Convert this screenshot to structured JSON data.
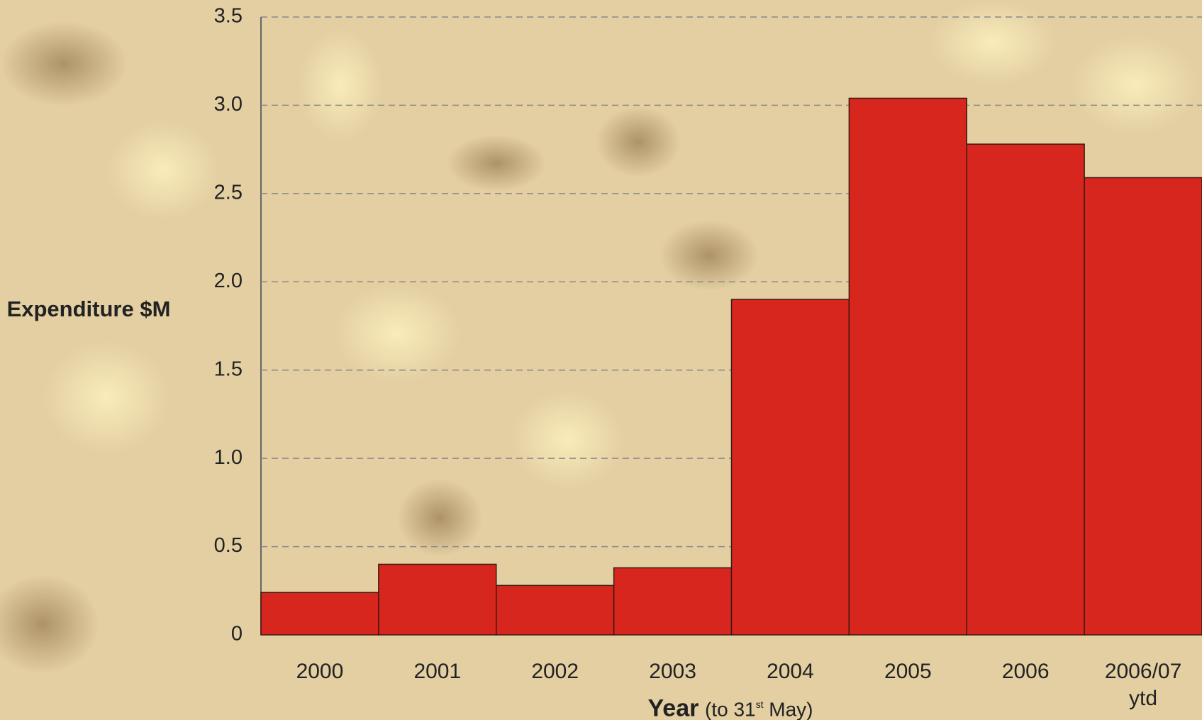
{
  "chart_data": {
    "type": "bar",
    "y_label": "Expenditure $M",
    "x_label": "Year",
    "x_label_note": [
      "(to 31",
      "st",
      " May)"
    ],
    "categories": [
      "2000",
      "2001",
      "2002",
      "2003",
      "2004",
      "2005",
      "2006",
      "2006/07 ytd"
    ],
    "values": [
      0.24,
      0.4,
      0.28,
      0.38,
      1.9,
      3.04,
      2.78,
      2.59
    ],
    "color": "#d7261e",
    "ylim": [
      0,
      3.5
    ],
    "yticks": [
      0,
      0.5,
      {
        "value": 1,
        "label": "1.0"
      },
      1.5,
      {
        "value": 2,
        "label": "2.0"
      },
      2.5,
      {
        "value": 3,
        "label": "3.0"
      },
      3.5
    ],
    "grid": true
  }
}
